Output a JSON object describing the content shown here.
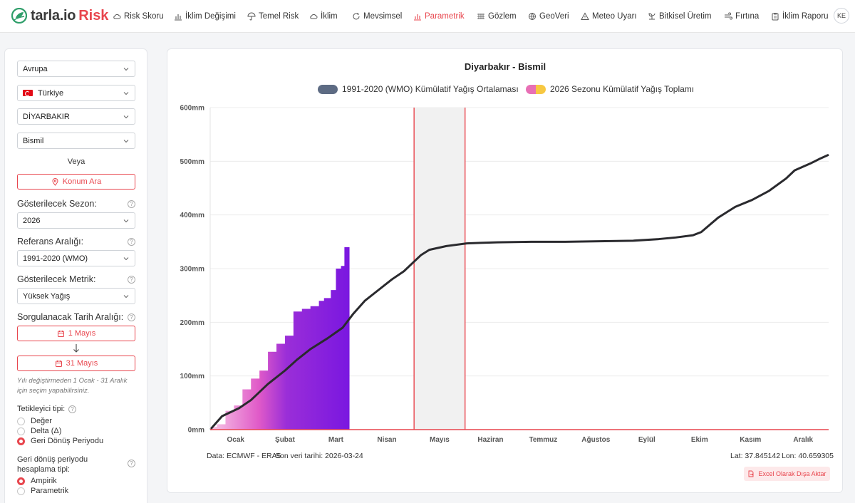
{
  "brand": {
    "name": "tarla.io",
    "suffix": "Risk"
  },
  "nav": {
    "items": [
      {
        "label": "Risk Skoru",
        "icon": "cloud-icon"
      },
      {
        "label": "İklim Değişimi",
        "icon": "bar-chart-icon"
      },
      {
        "label": "Temel Risk",
        "icon": "umbrella-icon"
      },
      {
        "label": "İklim",
        "icon": "cloud-icon"
      },
      {
        "label": "Mevsimsel",
        "icon": "refresh-icon"
      },
      {
        "label": "Parametrik",
        "icon": "bar-chart-icon"
      },
      {
        "label": "Gözlem",
        "icon": "grid-icon"
      },
      {
        "label": "GeoVeri",
        "icon": "globe-icon"
      },
      {
        "label": "Meteo Uyarı",
        "icon": "warning-icon"
      },
      {
        "label": "Bitkisel Üretim",
        "icon": "plant-icon"
      },
      {
        "label": "Fırtına",
        "icon": "wind-icon"
      },
      {
        "label": "İklim Raporu",
        "icon": "clipboard-icon"
      }
    ],
    "active": "Parametrik",
    "avatar": "KE"
  },
  "sidebar": {
    "region": "Avrupa",
    "country": "Türkiye",
    "province": "DİYARBAKIR",
    "district": "Bismil",
    "or_label": "Veya",
    "location_search": "Konum Ara",
    "season_label": "Gösterilecek Sezon:",
    "season_value": "2026",
    "reference_label": "Referans Aralığı:",
    "reference_value": "1991-2020 (WMO)",
    "metric_label": "Gösterilecek Metrik:",
    "metric_value": "Yüksek Yağış",
    "date_range_label": "Sorgulanacak Tarih Aralığı:",
    "date_start": "1 Mayıs",
    "date_end": "31 Mayıs",
    "date_note": "Yılı değiştirmeden 1 Ocak - 31 Aralık için seçim yapabilirsiniz.",
    "trigger_label": "Tetikleyici tipi:",
    "trigger_options": [
      "Değer",
      "Delta (Δ)",
      "Geri Dönüş Periyodu"
    ],
    "trigger_selected": "Geri Dönüş Periyodu",
    "return_label": "Geri dönüş periyodu hesaplama tipi:",
    "return_options": [
      "Ampirik",
      "Parametrik"
    ],
    "return_selected": "Ampirik",
    "help_glyph": "?"
  },
  "chart": {
    "title": "Diyarbakır - Bismil",
    "legend": [
      "1991-2020 (WMO) Kümülatif Yağış Ortalaması",
      "2026 Sezonu Kümülatif Yağış Toplamı"
    ],
    "data_source": "Data: ECMWF - ERA5",
    "last_date": "Son veri tarihi: 2026-03-24",
    "lat": "Lat: 37.845142",
    "lon": "Lon: 40.659305",
    "export": "Excel Olarak Dışa Aktar"
  },
  "chart_data": {
    "type": "line",
    "title": "Diyarbakır - Bismil",
    "xlabel": "",
    "ylabel": "",
    "ylim": [
      0,
      600
    ],
    "y_unit": "mm",
    "y_ticks": [
      "0mm",
      "100mm",
      "200mm",
      "300mm",
      "400mm",
      "500mm",
      "600mm"
    ],
    "y_tick_values": [
      0,
      100,
      200,
      300,
      400,
      500,
      600
    ],
    "x_range": [
      1,
      365
    ],
    "months": [
      "Ocak",
      "Şubat",
      "Mart",
      "Nisan",
      "Mayıs",
      "Haziran",
      "Temmuz",
      "Ağustos",
      "Eylül",
      "Ekim",
      "Kasım",
      "Aralık"
    ],
    "month_centers_doy": [
      16,
      45,
      75,
      105,
      136,
      166,
      197,
      228,
      258,
      289,
      319,
      350
    ],
    "series": [
      {
        "name": "1991-2020 (WMO) Kümülatif Yağış Ortalaması",
        "color": "#2a2a2e",
        "x": [
          1,
          8,
          18,
          25,
          35,
          45,
          52,
          60,
          70,
          79,
          85,
          92,
          100,
          108,
          115,
          120,
          125,
          130,
          140,
          152,
          160,
          170,
          190,
          210,
          230,
          250,
          265,
          275,
          285,
          290,
          300,
          310,
          320,
          330,
          340,
          345,
          355,
          360,
          365
        ],
        "y": [
          0,
          25,
          40,
          55,
          85,
          110,
          130,
          150,
          170,
          190,
          215,
          240,
          260,
          280,
          295,
          310,
          325,
          335,
          342,
          347,
          348,
          349,
          350,
          350,
          351,
          352,
          355,
          358,
          362,
          368,
          395,
          415,
          428,
          445,
          468,
          483,
          497,
          505,
          512
        ]
      },
      {
        "name": "2026 Sezonu Kümülatif Yağış Toplamı",
        "colors": [
          "#f7b8e0",
          "#e04fc8",
          "#8a1fe0"
        ],
        "x": [
          1,
          5,
          10,
          15,
          20,
          25,
          30,
          35,
          40,
          45,
          50,
          55,
          60,
          65,
          68,
          72,
          75,
          78,
          80,
          83
        ],
        "y": [
          5,
          10,
          35,
          45,
          75,
          95,
          110,
          145,
          160,
          175,
          220,
          225,
          230,
          240,
          245,
          260,
          300,
          305,
          340,
          365
        ]
      }
    ],
    "highlight_range_doy": [
      121,
      151
    ],
    "annotations": []
  }
}
